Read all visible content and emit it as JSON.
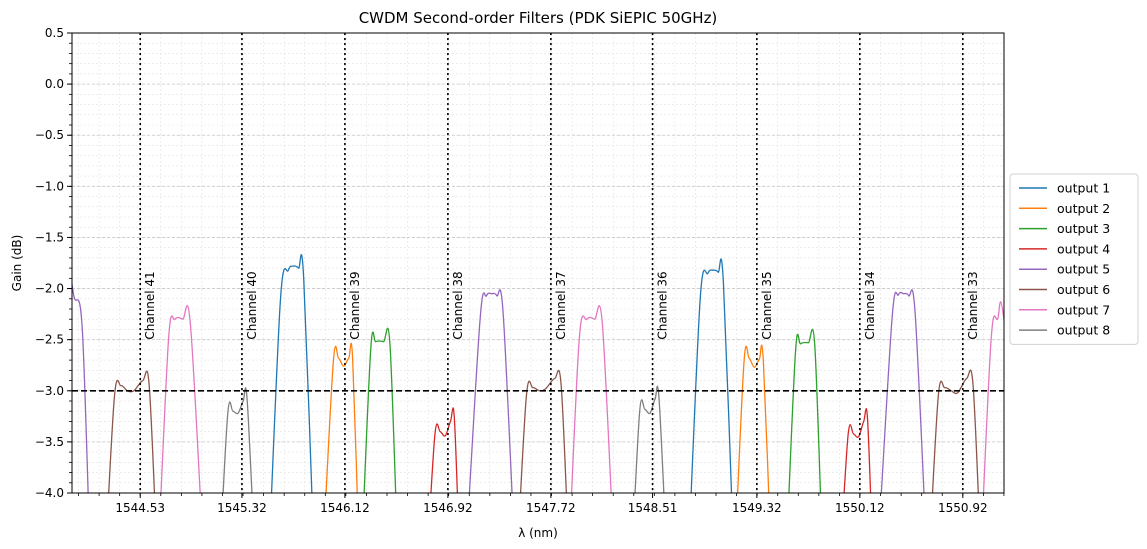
{
  "chart_data": {
    "type": "line",
    "title": "CWDM Second-order Filters (PDK SiEPIC 50GHz)",
    "xlabel": "λ (nm)",
    "ylabel": "Gain (dB)",
    "xlim": [
      1544.0,
      1551.24
    ],
    "ylim": [
      -4.0,
      0.5
    ],
    "xticks": [
      1544.53,
      1545.32,
      1546.12,
      1546.92,
      1547.72,
      1548.51,
      1549.32,
      1550.12,
      1550.92
    ],
    "xtick_labels": [
      "1544.53",
      "1545.32",
      "1546.12",
      "1546.92",
      "1547.72",
      "1548.51",
      "1549.32",
      "1550.12",
      "1550.92"
    ],
    "yticks": [
      0.5,
      0.0,
      -0.5,
      -1.0,
      -1.5,
      -2.0,
      -2.5,
      -3.0,
      -3.5,
      -4.0
    ],
    "ytick_labels": [
      "0.5",
      "0.0",
      "−0.5",
      "−1.0",
      "−1.5",
      "−2.0",
      "−2.5",
      "−3.0",
      "−3.5",
      "−4.0"
    ],
    "grid": true,
    "minor_grid": true,
    "legend_position": "outside-right",
    "threshold": {
      "y": -3.0,
      "style": "dashed",
      "color": "#000000"
    },
    "channels": [
      {
        "label": "Channel 41",
        "x": 1544.53
      },
      {
        "label": "Channel 40",
        "x": 1545.32
      },
      {
        "label": "Channel 39",
        "x": 1546.12
      },
      {
        "label": "Channel 38",
        "x": 1546.92
      },
      {
        "label": "Channel 37",
        "x": 1547.72
      },
      {
        "label": "Channel 36",
        "x": 1548.51
      },
      {
        "label": "Channel 35",
        "x": 1549.32
      },
      {
        "label": "Channel 34",
        "x": 1550.12
      },
      {
        "label": "Channel 33",
        "x": 1550.92
      }
    ],
    "series": [
      {
        "name": "output 1",
        "color": "#1f77b4",
        "passbands": [
          {
            "edges": [
              1545.53,
              1545.88
            ],
            "top": [
              [
                1545.62,
                -2.1
              ],
              [
                1545.68,
                -1.82
              ],
              [
                1545.72,
                -1.78
              ],
              [
                1545.76,
                -1.8
              ],
              [
                1545.8,
                -1.9
              ]
            ]
          },
          {
            "edges": [
              1548.79,
              1549.14
            ],
            "top": [
              [
                1548.88,
                -2.1
              ],
              [
                1548.94,
                -1.85
              ],
              [
                1548.98,
                -1.82
              ],
              [
                1549.02,
                -1.84
              ],
              [
                1549.06,
                -1.94
              ]
            ]
          }
        ]
      },
      {
        "name": "output 2",
        "color": "#ff7f0e",
        "passbands": [
          {
            "edges": [
              1545.95,
              1546.23
            ],
            "top": [
              [
                1546.03,
                -2.72
              ],
              [
                1546.07,
                -2.68
              ],
              [
                1546.11,
                -2.76
              ],
              [
                1546.15,
                -2.68
              ],
              [
                1546.18,
                -2.68
              ]
            ]
          },
          {
            "edges": [
              1549.15,
              1549.43
            ],
            "top": [
              [
                1549.22,
                -2.72
              ],
              [
                1549.26,
                -2.68
              ],
              [
                1549.3,
                -2.77
              ],
              [
                1549.34,
                -2.69
              ],
              [
                1549.37,
                -2.7
              ]
            ]
          }
        ]
      },
      {
        "name": "output 3",
        "color": "#2ca02c",
        "passbands": [
          {
            "edges": [
              1546.25,
              1546.53
            ],
            "top": [
              [
                1546.32,
                -2.6
              ],
              [
                1546.36,
                -2.52
              ],
              [
                1546.42,
                -2.52
              ],
              [
                1546.47,
                -2.55
              ]
            ]
          },
          {
            "edges": [
              1549.55,
              1549.83
            ],
            "top": [
              [
                1549.62,
                -2.62
              ],
              [
                1549.66,
                -2.54
              ],
              [
                1549.72,
                -2.53
              ],
              [
                1549.77,
                -2.56
              ]
            ]
          }
        ]
      },
      {
        "name": "output 4",
        "color": "#d62728",
        "passbands": [
          {
            "edges": [
              1546.76,
              1547.01
            ],
            "top": [
              [
                1546.82,
                -3.42
              ],
              [
                1546.86,
                -3.4
              ],
              [
                1546.9,
                -3.44
              ],
              [
                1546.94,
                -3.3
              ],
              [
                1546.97,
                -3.26
              ]
            ]
          },
          {
            "edges": [
              1549.97,
              1550.22
            ],
            "top": [
              [
                1550.03,
                -3.42
              ],
              [
                1550.07,
                -3.42
              ],
              [
                1550.11,
                -3.45
              ],
              [
                1550.15,
                -3.3
              ],
              [
                1550.18,
                -3.27
              ]
            ]
          }
        ]
      },
      {
        "name": "output 5",
        "color": "#9467bd",
        "passbands": [
          {
            "edges": [
              1543.86,
              1544.14
            ],
            "top": [
              [
                1543.96,
                -2.06
              ],
              [
                1544.02,
                -2.1
              ],
              [
                1544.08,
                -2.4
              ]
            ]
          },
          {
            "edges": [
              1547.06,
              1547.44
            ],
            "top": [
              [
                1547.17,
                -2.3
              ],
              [
                1547.22,
                -2.07
              ],
              [
                1547.26,
                -2.05
              ],
              [
                1547.3,
                -2.07
              ],
              [
                1547.35,
                -2.25
              ]
            ]
          },
          {
            "edges": [
              1550.26,
              1550.64
            ],
            "top": [
              [
                1550.37,
                -2.3
              ],
              [
                1550.42,
                -2.06
              ],
              [
                1550.46,
                -2.05
              ],
              [
                1550.5,
                -2.07
              ],
              [
                1550.55,
                -2.25
              ]
            ]
          }
        ]
      },
      {
        "name": "output 6",
        "color": "#8c564b",
        "passbands": [
          {
            "edges": [
              1544.26,
              1544.66
            ],
            "top": [
              [
                1544.33,
                -3.05
              ],
              [
                1544.38,
                -2.95
              ],
              [
                1544.43,
                -3.0
              ],
              [
                1544.48,
                -3.0
              ],
              [
                1544.55,
                -2.9
              ],
              [
                1544.6,
                -2.95
              ]
            ]
          },
          {
            "edges": [
              1547.46,
              1547.86
            ],
            "top": [
              [
                1547.53,
                -3.05
              ],
              [
                1547.58,
                -2.97
              ],
              [
                1547.63,
                -3.0
              ],
              [
                1547.68,
                -2.98
              ],
              [
                1547.75,
                -2.88
              ],
              [
                1547.8,
                -2.95
              ]
            ]
          },
          {
            "edges": [
              1550.66,
              1551.06
            ],
            "top": [
              [
                1550.73,
                -3.05
              ],
              [
                1550.78,
                -2.97
              ],
              [
                1550.83,
                -3.0
              ],
              [
                1550.88,
                -3.02
              ],
              [
                1550.95,
                -2.88
              ],
              [
                1551.0,
                -2.95
              ]
            ]
          }
        ]
      },
      {
        "name": "output 7",
        "color": "#e377c2",
        "passbands": [
          {
            "edges": [
              1544.67,
              1545.02
            ],
            "top": [
              [
                1544.75,
                -2.5
              ],
              [
                1544.8,
                -2.3
              ],
              [
                1544.86,
                -2.3
              ],
              [
                1544.92,
                -2.35
              ]
            ]
          },
          {
            "edges": [
              1547.86,
              1548.21
            ],
            "top": [
              [
                1547.94,
                -2.5
              ],
              [
                1548.0,
                -2.3
              ],
              [
                1548.06,
                -2.3
              ],
              [
                1548.12,
                -2.35
              ]
            ]
          },
          {
            "edges": [
              1551.06,
              1551.41
            ],
            "top": [
              [
                1551.14,
                -2.5
              ],
              [
                1551.19,
                -2.3
              ],
              [
                1551.24,
                -2.31
              ]
            ]
          }
        ]
      },
      {
        "name": "output 8",
        "color": "#7f7f7f",
        "passbands": [
          {
            "edges": [
              1545.15,
              1545.42
            ],
            "top": [
              [
                1545.21,
                -3.22
              ],
              [
                1545.25,
                -3.2
              ],
              [
                1545.29,
                -3.22
              ],
              [
                1545.33,
                -3.1
              ],
              [
                1545.36,
                -3.08
              ]
            ]
          },
          {
            "edges": [
              1548.35,
              1548.62
            ],
            "top": [
              [
                1548.41,
                -3.2
              ],
              [
                1548.45,
                -3.18
              ],
              [
                1548.49,
                -3.22
              ],
              [
                1548.53,
                -3.08
              ],
              [
                1548.56,
                -3.07
              ]
            ]
          }
        ]
      }
    ]
  }
}
